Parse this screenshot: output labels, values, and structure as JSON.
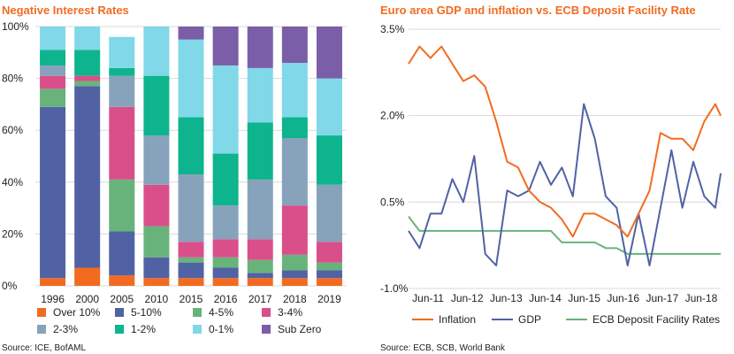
{
  "chart_data": [
    {
      "type": "bar",
      "stacked": true,
      "title": "Negative Interest Rates",
      "source": "Source: ICE, BofAML",
      "categories": [
        "1996",
        "2000",
        "2005",
        "2010",
        "2015",
        "2016",
        "2017",
        "2018",
        "2019"
      ],
      "y_ticks": [
        "0%",
        "20%",
        "40%",
        "60%",
        "80%",
        "100%"
      ],
      "ylim": [
        0,
        100
      ],
      "series": [
        {
          "name": "Over 10%",
          "color": "#f26b21",
          "values": [
            3,
            7,
            4,
            3,
            3,
            3,
            3,
            3,
            3
          ]
        },
        {
          "name": "5-10%",
          "color": "#5162a4",
          "values": [
            66,
            70,
            17,
            8,
            6,
            4,
            2,
            3,
            3
          ]
        },
        {
          "name": "4-5%",
          "color": "#68b37b",
          "values": [
            7,
            2,
            20,
            12,
            2,
            4,
            5,
            6,
            3
          ]
        },
        {
          "name": "3-4%",
          "color": "#d94f8a",
          "values": [
            5,
            2,
            28,
            16,
            6,
            7,
            8,
            19,
            8
          ]
        },
        {
          "name": "2-3%",
          "color": "#86a3bb",
          "values": [
            4,
            0,
            12,
            19,
            26,
            13,
            23,
            26,
            22
          ]
        },
        {
          "name": "1-2%",
          "color": "#0db48d",
          "values": [
            6,
            10,
            3,
            23,
            22,
            20,
            22,
            8,
            19
          ]
        },
        {
          "name": "0-1%",
          "color": "#80d8e8",
          "values": [
            9,
            9,
            12,
            19,
            30,
            34,
            21,
            21,
            22
          ]
        },
        {
          "name": "Sub Zero",
          "color": "#7b5ea8",
          "values": [
            0,
            0,
            0,
            0,
            5,
            15,
            16,
            14,
            20
          ]
        }
      ]
    },
    {
      "type": "line",
      "title": "Euro area GDP and inflation vs. ECB Deposit Facility Rate",
      "source": "Source: ECB, SCB, World Bank",
      "x_ticks": [
        "Jun-11",
        "Jun-12",
        "Jun-13",
        "Jun-14",
        "Jun-15",
        "Jun-16",
        "Jun-17",
        "Jun-18"
      ],
      "y_ticks": [
        "-1.0%",
        "0.5%",
        "2.0%",
        "3.5%"
      ],
      "ylim": [
        -1.0,
        3.5
      ],
      "x_range": [
        0,
        28.5
      ],
      "series": [
        {
          "name": "Inflation",
          "color": "#f26b21",
          "x": [
            0,
            1,
            2,
            3,
            4,
            5,
            6,
            7,
            8,
            9,
            10,
            11,
            12,
            13,
            14,
            15,
            16,
            17,
            18,
            19,
            20,
            21,
            22,
            23,
            24,
            25,
            26,
            27,
            28,
            28.5
          ],
          "values": [
            2.9,
            3.2,
            3.0,
            3.2,
            2.9,
            2.6,
            2.7,
            2.5,
            1.9,
            1.2,
            1.1,
            0.7,
            0.5,
            0.4,
            0.2,
            -0.1,
            0.3,
            0.3,
            0.2,
            0.1,
            -0.1,
            0.3,
            0.7,
            1.7,
            1.6,
            1.6,
            1.4,
            1.9,
            2.2,
            2.0
          ]
        },
        {
          "name": "GDP",
          "color": "#5162a4",
          "x": [
            0,
            1,
            2,
            3,
            4,
            5,
            6,
            7,
            8,
            9,
            10,
            11,
            12,
            13,
            14,
            15,
            16,
            17,
            18,
            19,
            20,
            21,
            22,
            23,
            24,
            25,
            26,
            27,
            28,
            28.5
          ],
          "values": [
            0.0,
            -0.3,
            0.3,
            0.3,
            0.9,
            0.5,
            1.3,
            -0.4,
            -0.6,
            0.7,
            0.6,
            0.7,
            1.2,
            0.8,
            1.1,
            0.6,
            2.2,
            1.6,
            0.6,
            0.4,
            -0.6,
            0.3,
            -0.6,
            0.4,
            1.4,
            0.4,
            1.2,
            0.6,
            0.4,
            1.0
          ]
        },
        {
          "name": "ECB Deposit Facility Rates",
          "color": "#68b37b",
          "x": [
            0,
            1,
            2,
            3,
            4,
            5,
            6,
            7,
            8,
            9,
            10,
            11,
            12,
            13,
            14,
            15,
            16,
            17,
            18,
            19,
            20,
            21,
            22,
            23,
            24,
            25,
            26,
            27,
            28,
            28.5
          ],
          "values": [
            0.25,
            0.0,
            0.0,
            0.0,
            0.0,
            0.0,
            0.0,
            0.0,
            0.0,
            0.0,
            0.0,
            0.0,
            0.0,
            0.0,
            -0.2,
            -0.2,
            -0.2,
            -0.2,
            -0.3,
            -0.3,
            -0.4,
            -0.4,
            -0.4,
            -0.4,
            -0.4,
            -0.4,
            -0.4,
            -0.4,
            -0.4,
            -0.4
          ]
        }
      ]
    }
  ]
}
